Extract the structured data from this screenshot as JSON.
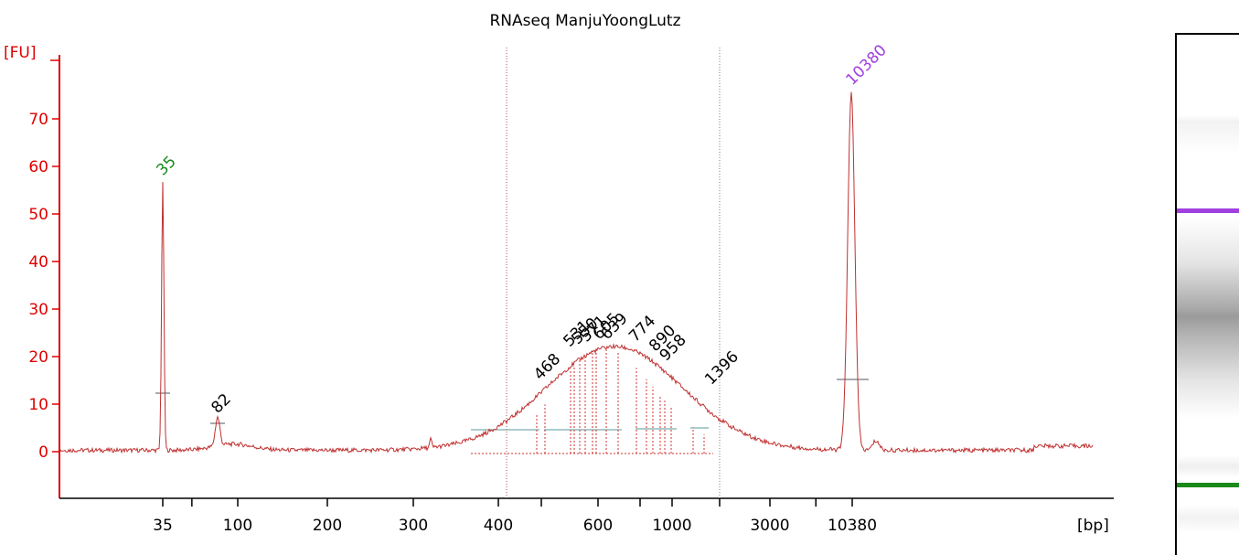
{
  "chart_data": {
    "type": "line",
    "title": "RNAseq ManjuYoongLutz",
    "ylabel": "[FU]",
    "xlabel": "[bp]",
    "ylim": [
      -8,
      77
    ],
    "y_ticks": [
      "0",
      "10",
      "20",
      "30",
      "40",
      "50",
      "60",
      "70"
    ],
    "x_tick_labels": [
      {
        "label": "35",
        "bp": 35
      },
      {
        "label": "100",
        "bp": 100
      },
      {
        "label": "200",
        "bp": 200
      },
      {
        "label": "300",
        "bp": 300
      },
      {
        "label": "400",
        "bp": 400
      },
      {
        "label": "600",
        "bp": 600
      },
      {
        "label": "1000",
        "bp": 1000
      },
      {
        "label": "3000",
        "bp": 3000
      },
      {
        "label": "10380",
        "bp": 10380
      }
    ],
    "peaks": [
      {
        "label": "35",
        "bp": 35,
        "fu": 56,
        "color": "#1a8a1a"
      },
      {
        "label": "82",
        "bp": 82,
        "fu": 6,
        "color": "#000000"
      },
      {
        "label": "468",
        "bp": 468,
        "fu": 13,
        "color": "#000000"
      },
      {
        "label": "531",
        "bp": 531,
        "fu": 20,
        "color": "#000000"
      },
      {
        "label": "550",
        "bp": 550,
        "fu": 20.5,
        "color": "#000000"
      },
      {
        "label": "571",
        "bp": 571,
        "fu": 21,
        "color": "#000000"
      },
      {
        "label": "605",
        "bp": 605,
        "fu": 21.5,
        "color": "#000000"
      },
      {
        "label": "639",
        "bp": 639,
        "fu": 21.5,
        "color": "#000000"
      },
      {
        "label": "774",
        "bp": 774,
        "fu": 21,
        "color": "#000000"
      },
      {
        "label": "890",
        "bp": 890,
        "fu": 19,
        "color": "#000000"
      },
      {
        "label": "958",
        "bp": 958,
        "fu": 17,
        "color": "#000000"
      },
      {
        "label": "1396",
        "bp": 1396,
        "fu": 12,
        "color": "#000000"
      },
      {
        "label": "10380",
        "bp": 10380,
        "fu": 75,
        "color": "#a040e0"
      }
    ],
    "grid": false,
    "colors": {
      "axis": "#e00000",
      "trace": "#c03030",
      "lower_marker": "#1a8a1a",
      "upper_marker": "#a040e0"
    }
  },
  "gel": {
    "upper_marker_color": "#a040e0",
    "lower_marker_color": "#1a8a1a"
  }
}
